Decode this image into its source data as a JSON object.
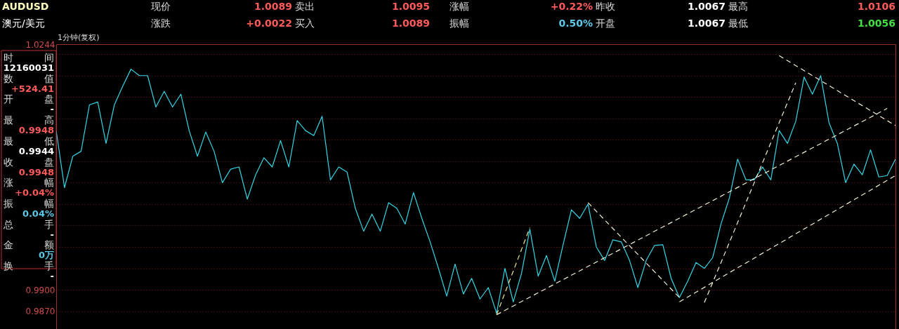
{
  "chart_data": {
    "type": "line",
    "subtitle": "1分钟(复权)",
    "annotations": [
      "AUDUSD",
      "现价",
      "1.0089",
      "卖出",
      "1.0095",
      "涨幅",
      "+0.22%",
      "昨收",
      "1.0067",
      "最高",
      "1.0106",
      "澳元/美元",
      "涨跌",
      "+0.0022",
      "买入",
      "1.0089",
      "振幅",
      "0.50%",
      "开盘",
      "1.0067",
      "最低",
      "1.0056",
      "时",
      "间",
      "12160031",
      "数",
      "值",
      "+524.41",
      "开",
      "盘",
      "-",
      "最",
      "高",
      "0.9948",
      "最",
      "低",
      "0.9944",
      "收",
      "盘",
      "0.9948",
      "涨",
      "幅",
      "+0.04%",
      "振",
      "幅",
      "0.04%",
      "总",
      "手",
      "-",
      "金",
      "额",
      "0万",
      "换",
      "手",
      "-"
    ],
    "categories": [
      null,
      null,
      null,
      null,
      null,
      null,
      null,
      null,
      null,
      null,
      null,
      null,
      null,
      null,
      null,
      null,
      null,
      null,
      null,
      null,
      null,
      null,
      null,
      null,
      null,
      null,
      null,
      null,
      null,
      null,
      null,
      null,
      null,
      null,
      null,
      null,
      null,
      null,
      null,
      null,
      null,
      null,
      null,
      null,
      null,
      null,
      null,
      null,
      null,
      null,
      null,
      null,
      null,
      null,
      null,
      null,
      null,
      null,
      null,
      null,
      null,
      null,
      null,
      null,
      null,
      null,
      null,
      null,
      null,
      null,
      null,
      null,
      null,
      null,
      null,
      null,
      null,
      null,
      null,
      null,
      null,
      null,
      null,
      null,
      null,
      null,
      null,
      null,
      null,
      null,
      null,
      null,
      null,
      null,
      null,
      null,
      null,
      null,
      null,
      null,
      null,
      null
    ],
    "series": [
      {
        "color": "#33d6e6",
        "line_style": "solid",
        "values": [
          1.0123,
          1.0043,
          1.0087,
          1.0094,
          1.0159,
          1.0163,
          1.0105,
          1.0159,
          1.0185,
          1.0209,
          1.02,
          1.02,
          1.0156,
          1.0178,
          1.0156,
          1.0174,
          1.0123,
          1.0087,
          1.0121,
          1.0094,
          1.005,
          1.0069,
          1.0072,
          1.0027,
          1.0061,
          1.0085,
          1.0072,
          1.0109,
          1.0072,
          1.0137,
          1.0123,
          1.0116,
          1.0143,
          1.0054,
          1.0072,
          1.0065,
          1.0014,
          0.9982,
          1.0006,
          0.9982,
          1.0022,
          1.0014,
          0.9992,
          1.0036,
          1.0,
          0.9967,
          0.993,
          0.9891,
          0.9936,
          0.9894,
          0.9916,
          0.9887,
          0.9903,
          0.9867,
          0.993,
          0.9883,
          0.9923,
          0.9985,
          0.9919,
          0.9948,
          0.9912,
          0.9963,
          1.0012,
          1.0,
          1.002,
          0.996,
          0.9941,
          0.997,
          0.9967,
          0.9941,
          0.9903,
          0.9941,
          0.9962,
          0.9963,
          0.9916,
          0.9889,
          0.9912,
          0.9938,
          0.993,
          0.9945,
          0.9992,
          1.0028,
          1.0083,
          1.0054,
          1.0054,
          1.0072,
          1.0054,
          1.0123,
          1.0105,
          1.0136,
          1.0198,
          1.0174,
          1.02,
          1.0134,
          1.0105,
          1.005,
          1.0076,
          1.0061,
          1.0096,
          1.0058,
          1.006,
          1.0083
        ]
      },
      {
        "color": "#e8e890",
        "line_style": "dashed",
        "values": [
          null,
          null,
          null,
          null,
          null,
          null,
          null,
          null,
          null,
          null,
          null,
          null,
          null,
          null,
          null,
          null,
          null,
          null,
          null,
          null,
          null,
          null,
          null,
          null,
          null,
          null,
          null,
          null,
          null,
          null,
          null,
          null,
          null,
          null,
          null,
          null,
          null,
          null,
          null,
          null,
          null,
          null,
          null,
          null,
          null,
          null,
          null,
          null,
          null,
          null,
          null,
          null,
          null,
          0.9865,
          null,
          null,
          null,
          0.9987,
          null,
          null,
          null,
          null,
          null,
          null,
          null,
          null,
          null,
          null,
          null,
          null,
          null,
          null,
          null,
          null,
          null,
          null,
          null,
          null,
          null,
          null,
          null,
          null,
          null,
          null,
          null,
          null,
          null,
          null,
          null,
          null,
          null,
          null,
          null,
          null,
          null,
          null,
          null,
          null,
          null,
          null,
          null,
          null
        ]
      },
      {
        "color": "#f4f0d8",
        "line_style": "dashed",
        "values": [
          null,
          null,
          null,
          null,
          null,
          null,
          null,
          null,
          null,
          null,
          null,
          null,
          null,
          null,
          null,
          null,
          null,
          null,
          null,
          null,
          null,
          null,
          null,
          null,
          null,
          null,
          null,
          null,
          null,
          null,
          null,
          null,
          null,
          null,
          null,
          null,
          null,
          null,
          null,
          null,
          null,
          null,
          null,
          null,
          null,
          null,
          null,
          null,
          null,
          null,
          null,
          null,
          null,
          0.9865,
          null,
          null,
          null,
          null,
          null,
          null,
          null,
          null,
          null,
          null,
          null,
          null,
          null,
          null,
          null,
          null,
          null,
          null,
          null,
          null,
          null,
          null,
          null,
          null,
          null,
          null,
          null,
          null,
          null,
          null,
          null,
          null,
          null,
          null,
          null,
          null,
          null,
          null,
          null,
          null,
          null,
          null,
          null,
          null,
          null,
          null,
          1.0154,
          null
        ]
      },
      {
        "color": "#f4f0d8",
        "line_style": "dashed",
        "values": [
          null,
          null,
          null,
          null,
          null,
          null,
          null,
          null,
          null,
          null,
          null,
          null,
          null,
          null,
          null,
          null,
          null,
          null,
          null,
          null,
          null,
          null,
          null,
          null,
          null,
          null,
          null,
          null,
          null,
          null,
          null,
          null,
          null,
          null,
          null,
          null,
          null,
          null,
          null,
          null,
          null,
          null,
          null,
          null,
          null,
          null,
          null,
          null,
          null,
          null,
          null,
          null,
          null,
          null,
          null,
          null,
          null,
          null,
          null,
          null,
          null,
          null,
          null,
          null,
          null,
          null,
          null,
          null,
          null,
          null,
          null,
          null,
          null,
          null,
          null,
          0.9883,
          null,
          null,
          null,
          null,
          null,
          null,
          null,
          null,
          null,
          null,
          null,
          null,
          null,
          null,
          null,
          null,
          null,
          null,
          null,
          null,
          null,
          null,
          null,
          null,
          null,
          1.006
        ]
      },
      {
        "color": "#f4f0d8",
        "line_style": "dashed",
        "values": [
          null,
          null,
          null,
          null,
          null,
          null,
          null,
          null,
          null,
          null,
          null,
          null,
          null,
          null,
          null,
          null,
          null,
          null,
          null,
          null,
          null,
          null,
          null,
          null,
          null,
          null,
          null,
          null,
          null,
          null,
          null,
          null,
          null,
          null,
          null,
          null,
          null,
          null,
          null,
          null,
          null,
          null,
          null,
          null,
          null,
          null,
          null,
          null,
          null,
          null,
          null,
          null,
          null,
          null,
          null,
          null,
          null,
          null,
          null,
          null,
          null,
          null,
          null,
          null,
          null,
          null,
          null,
          null,
          null,
          null,
          null,
          null,
          null,
          null,
          null,
          null,
          null,
          null,
          0.9882,
          null,
          null,
          null,
          null,
          null,
          null,
          null,
          null,
          null,
          null,
          1.019,
          null,
          null,
          null,
          null,
          null,
          null,
          null,
          null,
          null,
          null,
          null,
          null
        ]
      },
      {
        "color": "#f4f0d8",
        "line_style": "dashed",
        "values": [
          null,
          null,
          null,
          null,
          null,
          null,
          null,
          null,
          null,
          null,
          null,
          null,
          null,
          null,
          null,
          null,
          null,
          null,
          null,
          null,
          null,
          null,
          null,
          null,
          null,
          null,
          null,
          null,
          null,
          null,
          null,
          null,
          null,
          null,
          null,
          null,
          null,
          null,
          null,
          null,
          null,
          null,
          null,
          null,
          null,
          null,
          null,
          null,
          null,
          null,
          null,
          null,
          null,
          null,
          null,
          null,
          null,
          null,
          null,
          null,
          null,
          null,
          null,
          null,
          null,
          null,
          null,
          null,
          null,
          null,
          null,
          null,
          null,
          null,
          null,
          null,
          null,
          null,
          null,
          null,
          null,
          null,
          null,
          null,
          null,
          null,
          null,
          1.0228,
          null,
          null,
          null,
          null,
          null,
          null,
          null,
          null,
          null,
          null,
          null,
          null,
          null,
          1.013
        ]
      },
      {
        "color": "#f4f0d8",
        "line_style": "dashed",
        "values": [
          null,
          null,
          null,
          null,
          null,
          null,
          null,
          null,
          null,
          null,
          null,
          null,
          null,
          null,
          null,
          null,
          null,
          null,
          null,
          null,
          null,
          null,
          null,
          null,
          null,
          null,
          null,
          null,
          null,
          null,
          null,
          null,
          null,
          null,
          null,
          null,
          null,
          null,
          null,
          null,
          null,
          null,
          null,
          null,
          null,
          null,
          null,
          null,
          null,
          null,
          null,
          null,
          null,
          null,
          null,
          null,
          null,
          null,
          null,
          null,
          null,
          null,
          null,
          null,
          1.0022,
          null,
          null,
          null,
          null,
          null,
          null,
          null,
          null,
          null,
          null,
          0.9889,
          null,
          null,
          null,
          null,
          null,
          null,
          null,
          null,
          null,
          null,
          null,
          null,
          null,
          null,
          null,
          null,
          null,
          null,
          null,
          null,
          null,
          null,
          null,
          null,
          null,
          null
        ]
      }
    ],
    "ylim": [
      0.9845,
      1.0244
    ],
    "yticks": [
      {
        "value": 0.987,
        "label": "0.9870"
      },
      {
        "value": 0.99,
        "label": "0.9900"
      },
      {
        "value": 0.993,
        "label": null
      },
      {
        "value": 0.996,
        "label": null
      },
      {
        "value": 0.999,
        "label": null
      },
      {
        "value": 1.002,
        "label": null
      },
      {
        "value": 1.005,
        "label": null
      },
      {
        "value": 1.008,
        "label": null
      },
      {
        "value": 1.011,
        "label": null
      },
      {
        "value": 1.014,
        "label": null
      },
      {
        "value": 1.017,
        "label": null
      },
      {
        "value": 1.02,
        "label": null
      },
      {
        "value": 1.023,
        "label": null
      },
      1.0244
    ],
    "grid": "y",
    "tick_labels": "y",
    "legend": false
  }
}
